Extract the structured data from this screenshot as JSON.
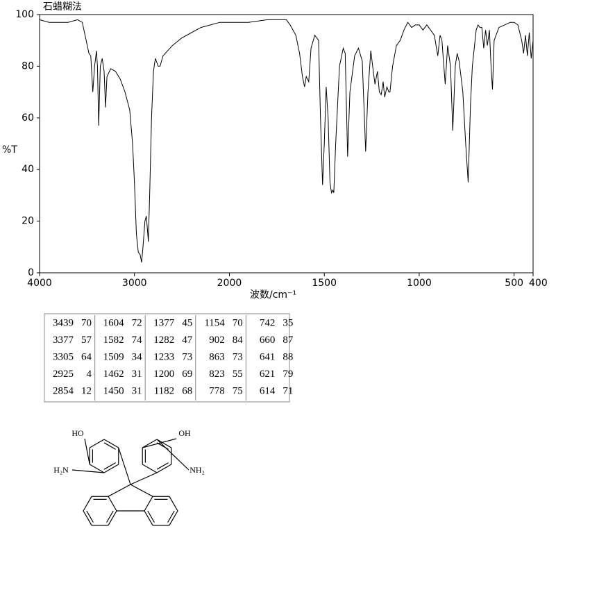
{
  "chart_data": {
    "type": "line",
    "title": "石蜡糊法",
    "ylabel": "%T",
    "xlabel": "波数/cm⁻¹",
    "color": "#000000",
    "xlim": [
      4000,
      400
    ],
    "x_scale_break": 2000,
    "xticks": [
      4000,
      3000,
      2000,
      1500,
      1000,
      500,
      400
    ],
    "ylim": [
      0,
      100
    ],
    "yticks": [
      0,
      20,
      40,
      60,
      80,
      100
    ],
    "x": [
      4000,
      3900,
      3800,
      3700,
      3600,
      3550,
      3520,
      3480,
      3460,
      3439,
      3420,
      3400,
      3390,
      3377,
      3360,
      3340,
      3320,
      3305,
      3290,
      3250,
      3200,
      3150,
      3100,
      3050,
      3020,
      3000,
      2980,
      2960,
      2940,
      2925,
      2910,
      2890,
      2875,
      2860,
      2854,
      2840,
      2820,
      2800,
      2780,
      2750,
      2730,
      2700,
      2600,
      2500,
      2400,
      2300,
      2200,
      2100,
      2000,
      1900,
      1800,
      1750,
      1700,
      1680,
      1650,
      1630,
      1615,
      1604,
      1595,
      1582,
      1570,
      1550,
      1530,
      1520,
      1509,
      1500,
      1490,
      1480,
      1470,
      1462,
      1455,
      1450,
      1440,
      1420,
      1400,
      1390,
      1377,
      1365,
      1340,
      1320,
      1300,
      1282,
      1270,
      1255,
      1245,
      1233,
      1220,
      1210,
      1200,
      1190,
      1182,
      1170,
      1160,
      1154,
      1140,
      1120,
      1100,
      1080,
      1060,
      1040,
      1020,
      1000,
      980,
      960,
      940,
      920,
      902,
      890,
      880,
      863,
      850,
      835,
      823,
      810,
      800,
      790,
      778,
      770,
      755,
      742,
      730,
      720,
      700,
      690,
      680,
      670,
      660,
      650,
      641,
      630,
      621,
      614,
      605,
      580,
      550,
      520,
      500,
      480,
      460,
      450,
      440,
      430,
      420,
      410,
      400
    ],
    "values": [
      98,
      97,
      97,
      97,
      98,
      97,
      92,
      85,
      84,
      70,
      80,
      86,
      80,
      57,
      80,
      83,
      78,
      64,
      76,
      79,
      78,
      75,
      70,
      63,
      50,
      35,
      15,
      8,
      7,
      4,
      10,
      20,
      22,
      15,
      12,
      30,
      60,
      78,
      83,
      80,
      80,
      84,
      88,
      91,
      93,
      95,
      96,
      97,
      97,
      97,
      98,
      98,
      98,
      96,
      92,
      85,
      76,
      72,
      76,
      74,
      87,
      92,
      90,
      60,
      34,
      50,
      72,
      60,
      35,
      31,
      32,
      31,
      50,
      80,
      87,
      85,
      45,
      70,
      84,
      87,
      82,
      47,
      70,
      86,
      80,
      73,
      78,
      70,
      69,
      74,
      68,
      72,
      70,
      70,
      80,
      88,
      90,
      94,
      97,
      95,
      96,
      96,
      94,
      96,
      94,
      92,
      84,
      92,
      90,
      73,
      88,
      80,
      55,
      80,
      85,
      82,
      75,
      70,
      50,
      35,
      65,
      80,
      94,
      96,
      95,
      95,
      87,
      94,
      88,
      94,
      79,
      71,
      90,
      95,
      96,
      97,
      97,
      96,
      90,
      85,
      92,
      84,
      93,
      83,
      90
    ]
  },
  "table": {
    "columns": [
      [
        [
          3439,
          70
        ],
        [
          3377,
          57
        ],
        [
          3305,
          64
        ],
        [
          2925,
          4
        ],
        [
          2854,
          12
        ]
      ],
      [
        [
          1604,
          72
        ],
        [
          1582,
          74
        ],
        [
          1509,
          34
        ],
        [
          1462,
          31
        ],
        [
          1450,
          31
        ]
      ],
      [
        [
          1377,
          45
        ],
        [
          1282,
          47
        ],
        [
          1233,
          73
        ],
        [
          1200,
          69
        ],
        [
          1182,
          68
        ]
      ],
      [
        [
          1154,
          70
        ],
        [
          902,
          84
        ],
        [
          863,
          73
        ],
        [
          823,
          55
        ],
        [
          778,
          75
        ]
      ],
      [
        [
          742,
          35
        ],
        [
          660,
          87
        ],
        [
          641,
          88
        ],
        [
          621,
          79
        ],
        [
          614,
          71
        ]
      ]
    ]
  },
  "structure": {
    "labels": [
      "HO",
      "OH",
      "H₂N",
      "NH₂"
    ]
  }
}
